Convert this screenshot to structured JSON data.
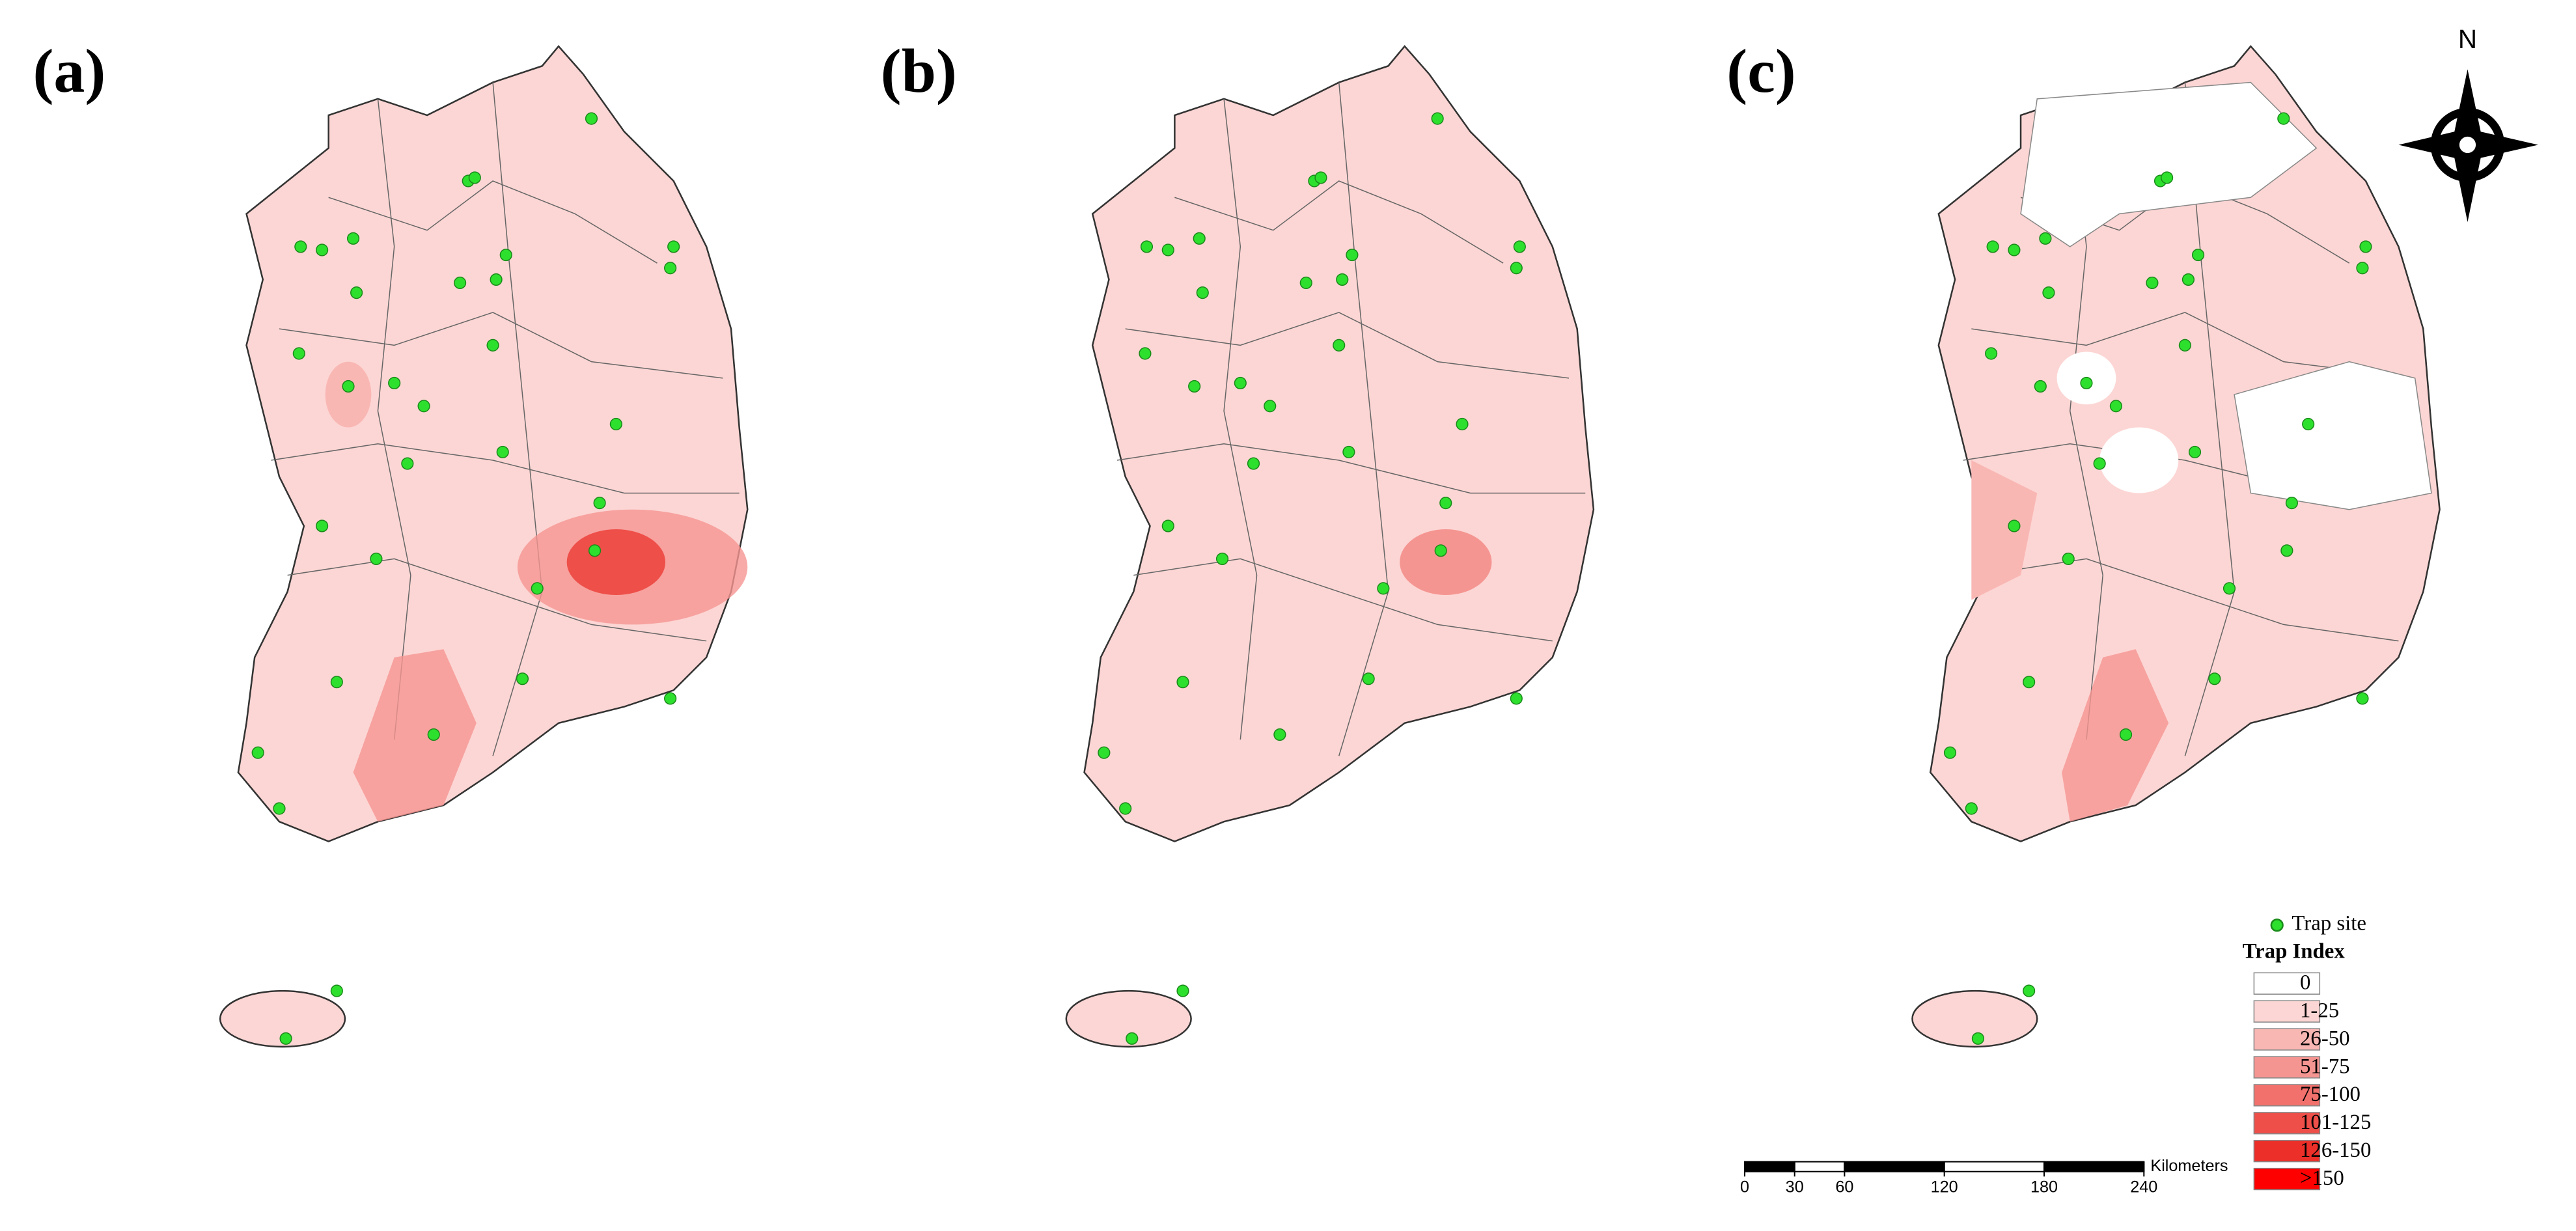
{
  "panels": [
    {
      "label": "(a)"
    },
    {
      "label": "(b)"
    },
    {
      "label": "(c)"
    }
  ],
  "compass": "N",
  "legend": {
    "trap_site": "Trap site",
    "title": "Trap Index",
    "items": [
      {
        "label": "0",
        "color": "#ffffff"
      },
      {
        "label": "1-25",
        "color": "#fcd6d4"
      },
      {
        "label": "26-50",
        "color": "#f9b7b4"
      },
      {
        "label": "51-75",
        "color": "#f59591"
      },
      {
        "label": "75-100",
        "color": "#f2716c"
      },
      {
        "label": "101-125",
        "color": "#ee4f49"
      },
      {
        "label": "126-150",
        "color": "#ec2f29"
      },
      {
        "label": ">150",
        "color": "#ff0000"
      }
    ]
  },
  "scale_bar": {
    "unit": "Kilometers",
    "ticks": [
      0,
      30,
      60,
      120,
      180,
      240
    ]
  }
}
